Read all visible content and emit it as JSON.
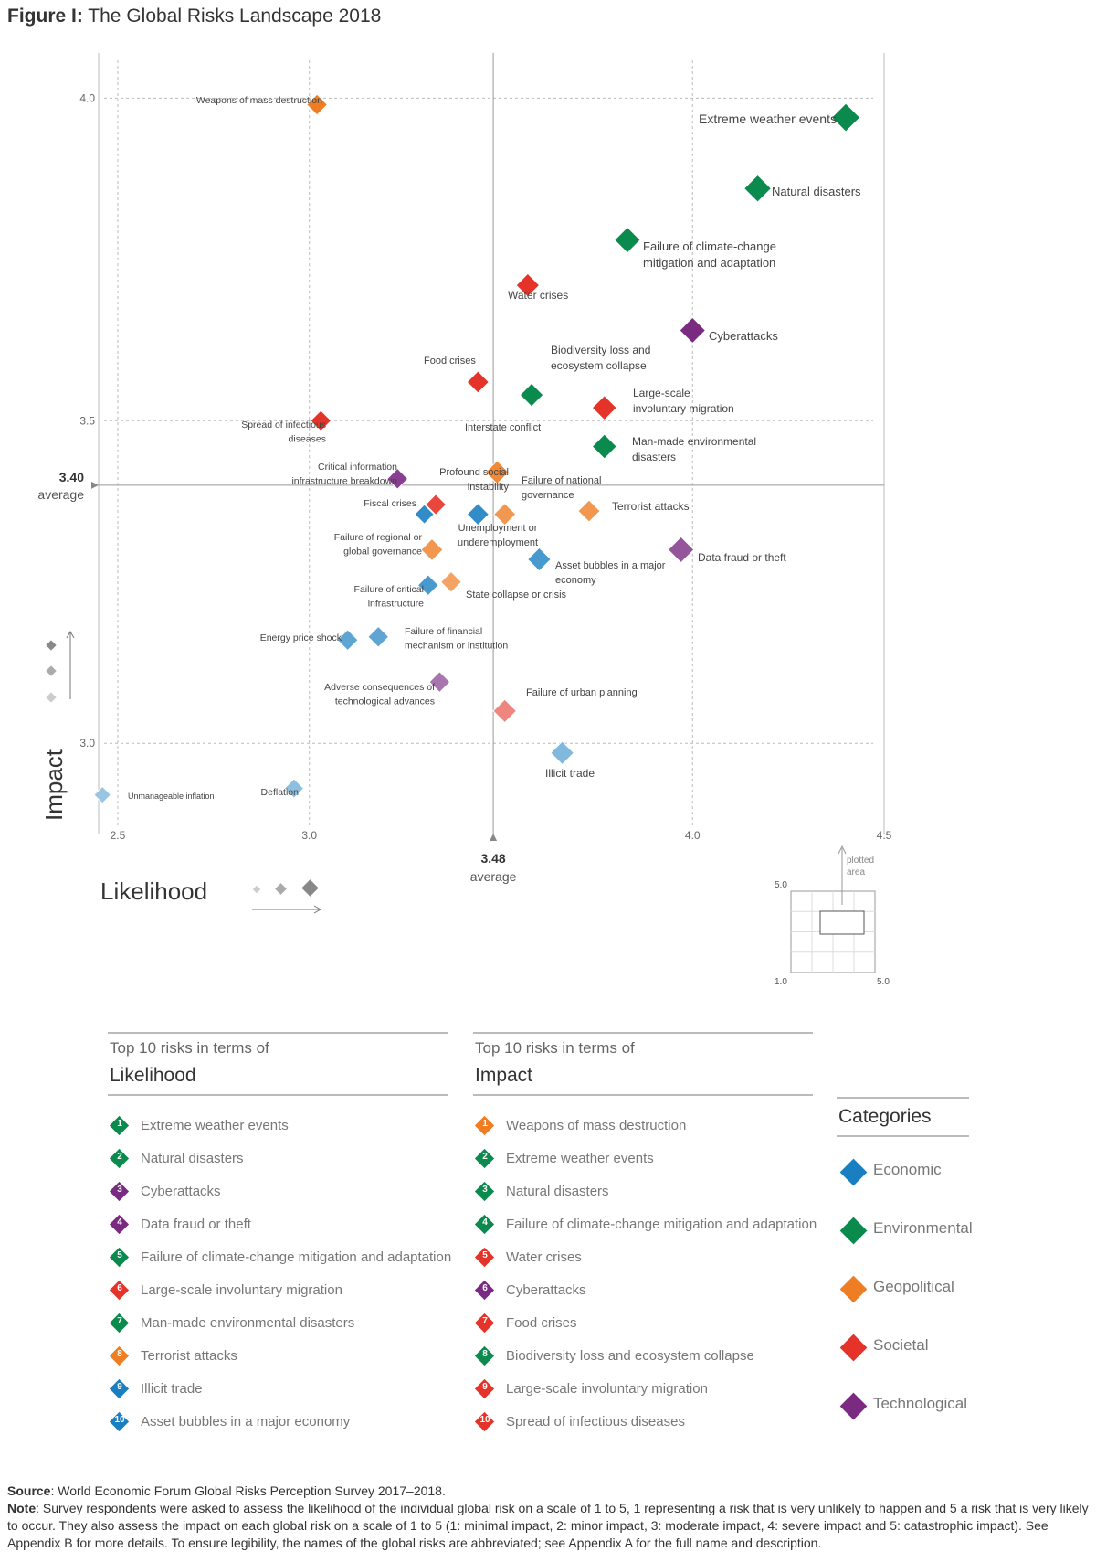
{
  "figure": {
    "title_lead": "Figure I:",
    "title_rest": " The Global Risks Landscape 2018"
  },
  "colors": {
    "Economic": "#1a7fc1",
    "Environmental": "#0b8a4d",
    "Geopolitical": "#ee7d23",
    "Societal": "#e53329",
    "Technological": "#7b2a82"
  },
  "chart_data": {
    "type": "scatter",
    "title": "The Global Risks Landscape 2018",
    "xlabel": "Likelihood",
    "ylabel": "Impact",
    "xlim": [
      2.45,
      4.5
    ],
    "ylim": [
      2.86,
      4.07
    ],
    "x_ticks": [
      2.5,
      3.0,
      4.0,
      4.5
    ],
    "x_tick_labels": [
      "2.5",
      "3.0",
      "4.0",
      "4.5"
    ],
    "y_ticks": [
      3.0,
      3.5,
      4.0
    ],
    "y_tick_labels": [
      "3.0",
      "3.5",
      "4.0"
    ],
    "x_average": {
      "value": 3.48,
      "label": "3.48",
      "sub": "average"
    },
    "y_average": {
      "value": 3.4,
      "label": "3.40",
      "sub": "average"
    },
    "grid": true,
    "points": [
      {
        "label": [
          "Extreme weather events"
        ],
        "category": "Environmental",
        "x": 4.4,
        "y": 3.97,
        "shade": 1.0
      },
      {
        "label": [
          "Natural disasters"
        ],
        "category": "Environmental",
        "x": 4.17,
        "y": 3.86,
        "shade": 1.0
      },
      {
        "label": [
          "Failure of climate-change",
          "mitigation and adaptation"
        ],
        "category": "Environmental",
        "x": 3.83,
        "y": 3.78,
        "shade": 1.0
      },
      {
        "label": [
          "Water crises"
        ],
        "category": "Societal",
        "x": 3.57,
        "y": 3.71,
        "shade": 1.0
      },
      {
        "label": [
          "Cyberattacks"
        ],
        "category": "Technological",
        "x": 4.0,
        "y": 3.64,
        "shade": 1.0
      },
      {
        "label": [
          "Food crises"
        ],
        "category": "Societal",
        "x": 3.44,
        "y": 3.56,
        "shade": 1.0
      },
      {
        "label": [
          "Biodiversity loss and",
          "ecosystem collapse"
        ],
        "category": "Environmental",
        "x": 3.58,
        "y": 3.54,
        "shade": 1.0
      },
      {
        "label": [
          "Large-scale",
          "involuntary migration"
        ],
        "category": "Societal",
        "x": 3.77,
        "y": 3.52,
        "shade": 1.0
      },
      {
        "label": [
          "Spread of infectious",
          "diseases"
        ],
        "category": "Societal",
        "x": 3.03,
        "y": 3.5,
        "shade": 1.0
      },
      {
        "label": [
          "Man-made environmental",
          "disasters"
        ],
        "category": "Environmental",
        "x": 3.77,
        "y": 3.46,
        "shade": 1.0
      },
      {
        "label": [
          "Interstate conflict"
        ],
        "category": "Geopolitical",
        "x": 3.49,
        "y": 3.42,
        "shade": 0.9
      },
      {
        "label": [
          "Weapons of mass destruction"
        ],
        "category": "Geopolitical",
        "x": 3.02,
        "y": 3.99,
        "shade": 1.0
      },
      {
        "label": [
          "Critical information",
          "infrastructure breakdown"
        ],
        "category": "Technological",
        "x": 3.23,
        "y": 3.41,
        "shade": 0.9
      },
      {
        "label": [
          "Profound social",
          "instability"
        ],
        "category": "Societal",
        "x": 3.33,
        "y": 3.37,
        "shade": 0.9
      },
      {
        "label": [
          "Fiscal crises"
        ],
        "category": "Economic",
        "x": 3.3,
        "y": 3.355,
        "shade": 0.9
      },
      {
        "label": [
          "Failure of national",
          "governance"
        ],
        "category": "Geopolitical",
        "x": 3.51,
        "y": 3.355,
        "shade": 0.8
      },
      {
        "label": [
          "Unemployment or",
          "underemployment"
        ],
        "category": "Economic",
        "x": 3.44,
        "y": 3.355,
        "shade": 0.9
      },
      {
        "label": [
          "Terrorist attacks"
        ],
        "category": "Geopolitical",
        "x": 3.73,
        "y": 3.36,
        "shade": 0.8
      },
      {
        "label": [
          "Failure of regional or",
          "global governance"
        ],
        "category": "Geopolitical",
        "x": 3.32,
        "y": 3.3,
        "shade": 0.8
      },
      {
        "label": [
          "Data fraud or theft"
        ],
        "category": "Technological",
        "x": 3.97,
        "y": 3.3,
        "shade": 0.8
      },
      {
        "label": [
          "Asset bubbles in a major",
          "economy"
        ],
        "category": "Economic",
        "x": 3.6,
        "y": 3.285,
        "shade": 0.8
      },
      {
        "label": [
          "Failure of critical",
          "infrastructure"
        ],
        "category": "Economic",
        "x": 3.31,
        "y": 3.245,
        "shade": 0.8
      },
      {
        "label": [
          "State collapse or crisis"
        ],
        "category": "Geopolitical",
        "x": 3.37,
        "y": 3.25,
        "shade": 0.7
      },
      {
        "label": [
          "Energy price shock"
        ],
        "category": "Economic",
        "x": 3.1,
        "y": 3.16,
        "shade": 0.7
      },
      {
        "label": [
          "Failure of financial",
          "mechanism or institution"
        ],
        "category": "Economic",
        "x": 3.18,
        "y": 3.165,
        "shade": 0.7
      },
      {
        "label": [
          "Adverse consequences of",
          "technological advances"
        ],
        "category": "Technological",
        "x": 3.34,
        "y": 3.095,
        "shade": 0.65
      },
      {
        "label": [
          "Failure of urban planning"
        ],
        "category": "Societal",
        "x": 3.51,
        "y": 3.05,
        "shade": 0.6
      },
      {
        "label": [
          "Illicit trade"
        ],
        "category": "Economic",
        "x": 3.66,
        "y": 2.985,
        "shade": 0.55
      },
      {
        "label": [
          "Deflation"
        ],
        "category": "Economic",
        "x": 2.96,
        "y": 2.93,
        "shade": 0.5
      },
      {
        "label": [
          "Unmanageable inflation"
        ],
        "category": "Economic",
        "x": 2.46,
        "y": 2.92,
        "shade": 0.45
      }
    ]
  },
  "inset": {
    "note_lines": [
      "plotted",
      "area"
    ],
    "top_label": "5.0",
    "bottom_label": "1.0",
    "right_label": "5.0"
  },
  "likelihood_list": {
    "small": "Top 10 risks in terms of",
    "big": "Likelihood",
    "items": [
      {
        "n": "1",
        "text": "Extreme weather events",
        "category": "Environmental"
      },
      {
        "n": "2",
        "text": "Natural disasters",
        "category": "Environmental"
      },
      {
        "n": "3",
        "text": "Cyberattacks",
        "category": "Technological"
      },
      {
        "n": "4",
        "text": "Data fraud or theft",
        "category": "Technological"
      },
      {
        "n": "5",
        "text": "Failure of climate-change mitigation and adaptation",
        "category": "Environmental"
      },
      {
        "n": "6",
        "text": "Large-scale involuntary migration",
        "category": "Societal"
      },
      {
        "n": "7",
        "text": "Man-made environmental disasters",
        "category": "Environmental"
      },
      {
        "n": "8",
        "text": "Terrorist attacks",
        "category": "Geopolitical"
      },
      {
        "n": "9",
        "text": "Illicit trade",
        "category": "Economic"
      },
      {
        "n": "10",
        "text": "Asset bubbles in a major economy",
        "category": "Economic"
      }
    ]
  },
  "impact_list": {
    "small": "Top 10 risks in terms of",
    "big": "Impact",
    "items": [
      {
        "n": "1",
        "text": "Weapons of mass destruction",
        "category": "Geopolitical"
      },
      {
        "n": "2",
        "text": "Extreme weather events",
        "category": "Environmental"
      },
      {
        "n": "3",
        "text": "Natural disasters",
        "category": "Environmental"
      },
      {
        "n": "4",
        "text": "Failure of climate-change mitigation and adaptation",
        "category": "Environmental"
      },
      {
        "n": "5",
        "text": "Water crises",
        "category": "Societal"
      },
      {
        "n": "6",
        "text": "Cyberattacks",
        "category": "Technological"
      },
      {
        "n": "7",
        "text": "Food crises",
        "category": "Societal"
      },
      {
        "n": "8",
        "text": "Biodiversity loss and ecosystem collapse",
        "category": "Environmental"
      },
      {
        "n": "9",
        "text": "Large-scale involuntary migration",
        "category": "Societal"
      },
      {
        "n": "10",
        "text": "Spread of infectious diseases",
        "category": "Societal"
      }
    ]
  },
  "categories": {
    "title": "Categories",
    "items": [
      "Economic",
      "Environmental",
      "Geopolitical",
      "Societal",
      "Technological"
    ]
  },
  "footer": {
    "source_label": "Source",
    "source_text": ": World Economic Forum Global Risks Perception Survey 2017–2018.",
    "note_label": "Note",
    "note_text": ": Survey respondents were asked to assess the likelihood of the individual global risk on a scale of 1 to 5, 1 representing a risk that is very unlikely to happen and 5 a risk that is very likely to occur. They also assess the impact on each global risk on a scale of 1 to 5 (1: minimal impact, 2: minor impact, 3: moderate impact, 4: severe impact and 5: catastrophic impact). See Appendix B for more details. To ensure legibility, the names of the global risks are abbreviated; see Appendix A for the full name and description."
  }
}
